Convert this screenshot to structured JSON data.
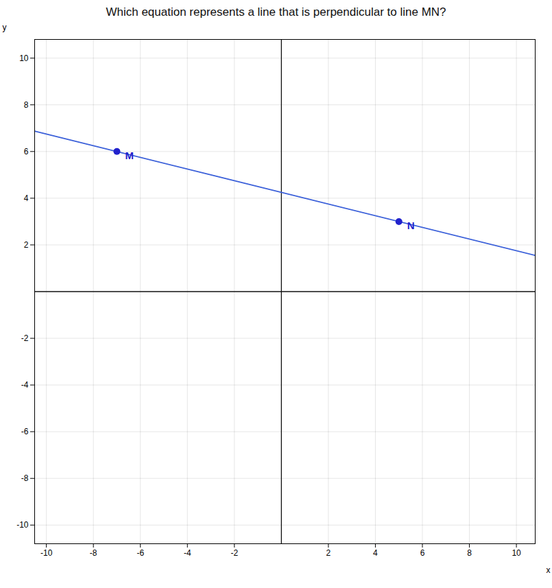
{
  "chart_data": {
    "type": "scatter",
    "title": "Which equation represents a line that is perpendicular to line MN?",
    "xlabel": "x",
    "ylabel": "y",
    "xlim": [
      -10.5,
      10.8
    ],
    "ylim": [
      -10.8,
      10.8
    ],
    "xticks": [
      -10,
      -8,
      -6,
      -4,
      -2,
      2,
      4,
      6,
      8,
      10
    ],
    "yticks": [
      -10,
      -8,
      -6,
      -4,
      -2,
      2,
      4,
      6,
      8,
      10
    ],
    "grid": true,
    "series": [
      {
        "type": "line",
        "color": "#3a5fd9",
        "x": [
          -10.5,
          10.8
        ],
        "values": [
          6.875,
          1.55
        ]
      },
      {
        "type": "scatter",
        "color": "#2222cc",
        "x": [
          -7,
          5
        ],
        "values": [
          6,
          3
        ]
      }
    ],
    "annotations": [
      {
        "text": "M",
        "x": -7,
        "y": 6,
        "color": "#2222cc"
      },
      {
        "text": "N",
        "x": 5,
        "y": 3,
        "color": "#2222cc"
      }
    ]
  }
}
